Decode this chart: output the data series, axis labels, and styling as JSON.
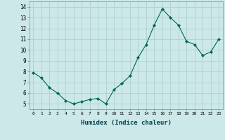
{
  "x": [
    0,
    1,
    2,
    3,
    4,
    5,
    6,
    7,
    8,
    9,
    10,
    11,
    12,
    13,
    14,
    15,
    16,
    17,
    18,
    19,
    20,
    21,
    22,
    23
  ],
  "y": [
    7.9,
    7.4,
    6.5,
    6.0,
    5.3,
    5.0,
    5.2,
    5.4,
    5.5,
    5.0,
    6.3,
    6.9,
    7.6,
    9.3,
    10.5,
    12.3,
    13.8,
    13.0,
    12.3,
    10.8,
    10.5,
    9.5,
    9.8,
    11.0
  ],
  "xlim": [
    -0.5,
    23.5
  ],
  "ylim": [
    4.5,
    14.5
  ],
  "yticks": [
    5,
    6,
    7,
    8,
    9,
    10,
    11,
    12,
    13,
    14
  ],
  "xticks": [
    0,
    1,
    2,
    3,
    4,
    5,
    6,
    7,
    8,
    9,
    10,
    11,
    12,
    13,
    14,
    15,
    16,
    17,
    18,
    19,
    20,
    21,
    22,
    23
  ],
  "xlabel": "Humidex (Indice chaleur)",
  "line_color": "#006655",
  "marker": "D",
  "marker_size": 2.0,
  "bg_color": "#cce8e8",
  "grid_color": "#aacccc"
}
